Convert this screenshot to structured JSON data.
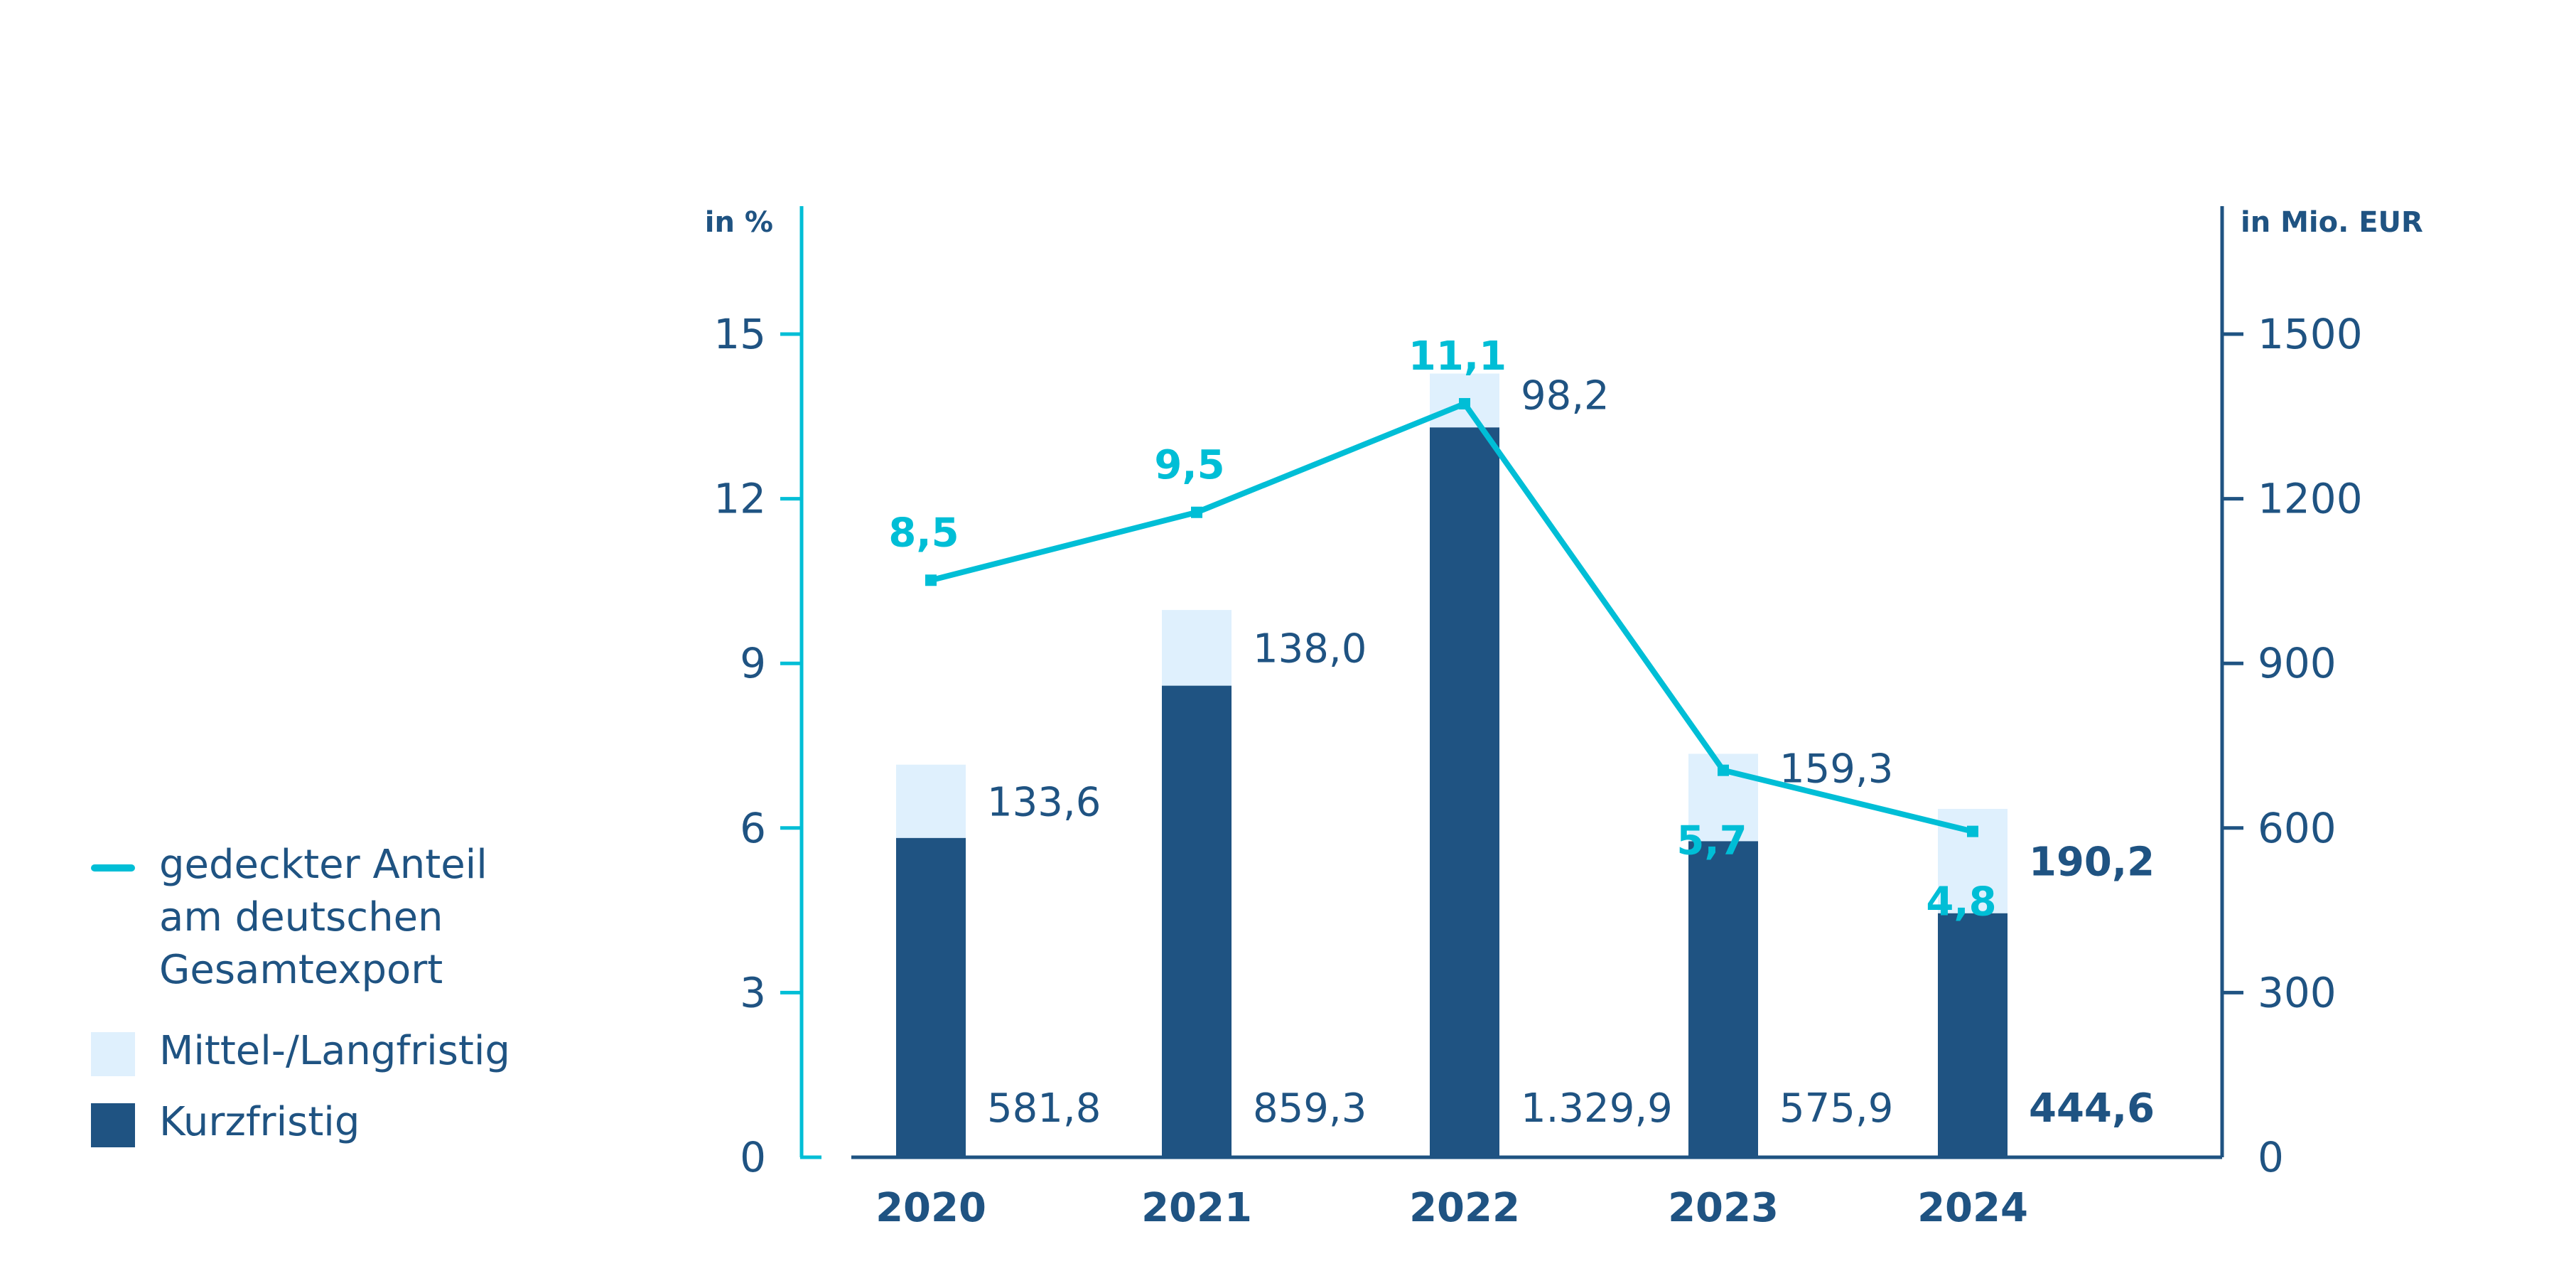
{
  "colors": {
    "short_term": "#1f5382",
    "medium_long_term": "#dff0fd",
    "share_line": "#00bed6",
    "text": "#1f5382"
  },
  "chart_data": {
    "type": "bar",
    "stacked": true,
    "title": "",
    "xlabel": "",
    "categories": [
      "2020",
      "2021",
      "2022",
      "2023",
      "2024"
    ],
    "y_left": {
      "label": "in %",
      "ticks": [
        "0",
        "3",
        "6",
        "9",
        "12",
        "15"
      ],
      "tick_values": [
        0,
        3,
        6,
        9,
        12,
        15
      ],
      "range": [
        0,
        15
      ]
    },
    "y_right": {
      "label": "in Mio. EUR",
      "ticks": [
        "0",
        "300",
        "600",
        "900",
        "1200",
        "1500"
      ],
      "tick_values": [
        0,
        300,
        600,
        900,
        1200,
        1500
      ],
      "range": [
        0,
        1500
      ]
    },
    "series": [
      {
        "name": "Kurzfristig",
        "type": "bar",
        "axis": "right",
        "values": [
          581.8,
          859.3,
          1329.9,
          575.9,
          444.6
        ],
        "labels": [
          "581,8",
          "859,3",
          "1.329,9",
          "575,9",
          "444,6"
        ]
      },
      {
        "name": "Mittel-/Langfristig",
        "type": "bar",
        "axis": "right",
        "values": [
          133.6,
          138.0,
          98.2,
          159.3,
          190.2
        ],
        "labels": [
          "133,6",
          "138,0",
          "98,2",
          "159,3",
          "190,2"
        ]
      },
      {
        "name": "gedeckter Anteil am deutschen Gesamtexport",
        "type": "line",
        "axis": "left",
        "values": [
          8.5,
          9.5,
          11.1,
          5.7,
          4.8
        ],
        "labels": [
          "8,5",
          "9,5",
          "11,1",
          "5,7",
          "4,8"
        ]
      }
    ],
    "highlight_category": "2024",
    "grid": false,
    "legend_position": "left"
  },
  "legend": {
    "items": [
      {
        "label": "gedeckter Anteil\nam deutschen\nGesamtexport",
        "kind": "line"
      },
      {
        "label": "Mittel-/Langfristig",
        "kind": "box-light"
      },
      {
        "label": "Kurzfristig",
        "kind": "box-dark"
      }
    ]
  }
}
